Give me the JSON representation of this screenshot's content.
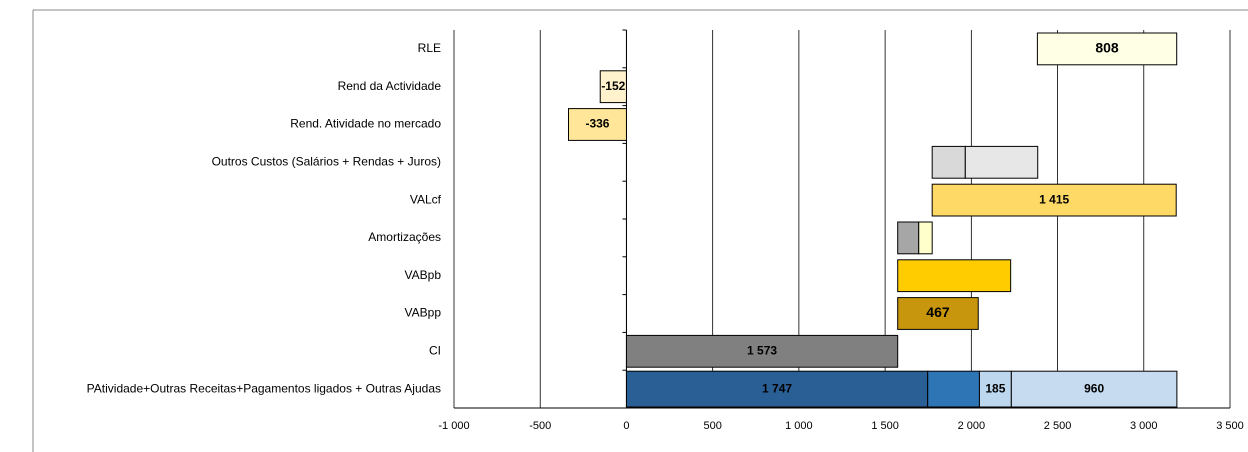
{
  "chart_data": {
    "type": "floating-bar",
    "rows": [
      {
        "category": "RLE",
        "segments": [
          {
            "start": 2383,
            "value": 808,
            "color": "#ffffe5",
            "show_label": true
          }
        ]
      },
      {
        "category": "Rend da Actividade",
        "segments": [
          {
            "start": 0,
            "value": -152,
            "color": "#fff2cc",
            "show_label": true
          }
        ]
      },
      {
        "category": "Rend. Atividade no mercado",
        "segments": [
          {
            "start": 0,
            "value": -336,
            "color": "#ffe699",
            "show_label": true
          }
        ]
      },
      {
        "category": "Outros Custos (Salários + Rendas + Juros)",
        "segments": [
          {
            "start": 1773,
            "value": 192,
            "color": "#d9d9d9"
          },
          {
            "start": 1965,
            "value": 420,
            "color": "#e7e7e7"
          }
        ]
      },
      {
        "category": "VALcf",
        "segments": [
          {
            "start": 1773,
            "value": 1415,
            "color": "#ffd966",
            "value_label": "1 415"
          }
        ]
      },
      {
        "category": "Amortizações",
        "segments": [
          {
            "start": 1573,
            "value": 122,
            "color": "#a6a6a6"
          },
          {
            "start": 1695,
            "value": 78,
            "color": "#ffffcc"
          }
        ]
      },
      {
        "category": "VABpb",
        "segments": [
          {
            "start": 1573,
            "value": 655,
            "color": "#ffcc00"
          }
        ]
      },
      {
        "category": "VABpp",
        "segments": [
          {
            "start": 1573,
            "value": 467,
            "color": "#c8960c",
            "show_label": true
          }
        ]
      },
      {
        "category": "CI",
        "segments": [
          {
            "start": 0,
            "value": 1573,
            "color": "#808080",
            "value_label": "1 573"
          }
        ]
      },
      {
        "category": "PAtividade+Outras Receitas+Pagamentos ligados + Outras Ajudas",
        "segments": [
          {
            "start": 0,
            "value": 1747,
            "color": "#2a5f96",
            "value_label": "1 747"
          },
          {
            "start": 1747,
            "value": 300,
            "color": "#2e75b6"
          },
          {
            "start": 2047,
            "value": 185,
            "color": "#bdd7ee",
            "show_label": true
          },
          {
            "start": 2232,
            "value": 960,
            "color": "#c6dbef",
            "show_label": true
          }
        ]
      }
    ],
    "xlim": [
      -1000,
      3500
    ],
    "xticks": [
      {
        "value": -1000,
        "label": "-1 000"
      },
      -500,
      0,
      500,
      {
        "value": 1000,
        "label": "1 000"
      },
      {
        "value": 1500,
        "label": "1 500"
      },
      {
        "value": 2000,
        "label": "2 000"
      },
      {
        "value": 2500,
        "label": "2 500"
      },
      {
        "value": 3000,
        "label": "3 000"
      },
      {
        "value": 3500,
        "label": "3 500"
      }
    ],
    "grid": true
  }
}
